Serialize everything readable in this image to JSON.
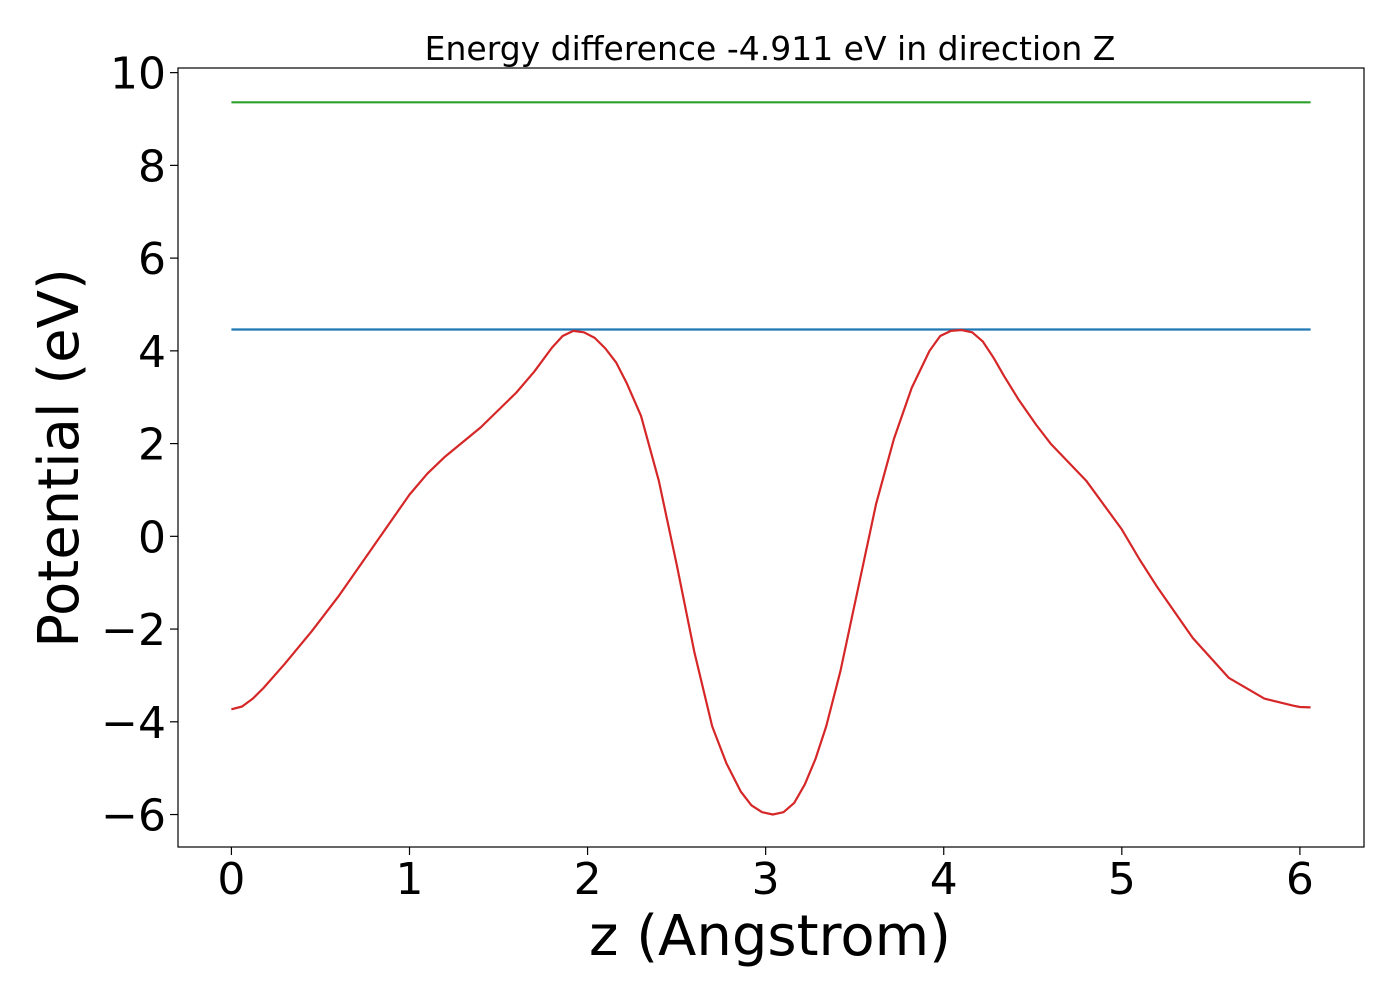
{
  "chart_data": {
    "type": "line",
    "title": "Energy difference -4.911 eV in direction Z",
    "xlabel": "z (Angstrom)",
    "ylabel": "Potential (eV)",
    "xlim": [
      -0.3,
      6.36
    ],
    "ylim": [
      -6.7,
      10.1
    ],
    "xticks": [
      0,
      1,
      2,
      3,
      4,
      5,
      6
    ],
    "xtick_labels": [
      "0",
      "1",
      "2",
      "3",
      "4",
      "5",
      "6"
    ],
    "yticks": [
      -6,
      -4,
      -2,
      0,
      2,
      4,
      6,
      8,
      10
    ],
    "ytick_labels": [
      "−6",
      "−4",
      "−2",
      "0",
      "2",
      "4",
      "6",
      "8",
      "10"
    ],
    "grid": false,
    "series": [
      {
        "color": "#2ca02c",
        "x": [
          0,
          6.06
        ],
        "y": [
          9.36,
          9.36
        ]
      },
      {
        "color": "#1f77b4",
        "x": [
          0,
          6.06
        ],
        "y": [
          4.46,
          4.46
        ]
      },
      {
        "color": "#d62728",
        "x": [
          0.0,
          0.06,
          0.12,
          0.18,
          0.3,
          0.45,
          0.6,
          0.8,
          1.0,
          1.1,
          1.2,
          1.4,
          1.6,
          1.7,
          1.8,
          1.86,
          1.92,
          1.98,
          2.04,
          2.1,
          2.16,
          2.22,
          2.3,
          2.4,
          2.5,
          2.6,
          2.7,
          2.78,
          2.86,
          2.92,
          2.98,
          3.04,
          3.1,
          3.16,
          3.22,
          3.28,
          3.34,
          3.42,
          3.52,
          3.62,
          3.72,
          3.82,
          3.92,
          3.98,
          4.04,
          4.1,
          4.16,
          4.22,
          4.28,
          4.34,
          4.42,
          4.52,
          4.6,
          4.8,
          5.0,
          5.1,
          5.2,
          5.4,
          5.6,
          5.8,
          5.96,
          6.0,
          6.06
        ],
        "y": [
          -3.73,
          -3.67,
          -3.5,
          -3.27,
          -2.75,
          -2.05,
          -1.3,
          -0.2,
          0.9,
          1.35,
          1.72,
          2.35,
          3.1,
          3.55,
          4.07,
          4.32,
          4.43,
          4.4,
          4.28,
          4.05,
          3.75,
          3.3,
          2.6,
          1.2,
          -0.6,
          -2.5,
          -4.1,
          -4.9,
          -5.5,
          -5.8,
          -5.95,
          -6.0,
          -5.95,
          -5.75,
          -5.35,
          -4.8,
          -4.1,
          -2.9,
          -1.1,
          0.7,
          2.1,
          3.2,
          4.0,
          4.32,
          4.43,
          4.45,
          4.4,
          4.2,
          3.85,
          3.45,
          2.95,
          2.4,
          2.0,
          1.2,
          0.15,
          -0.5,
          -1.1,
          -2.2,
          -3.05,
          -3.5,
          -3.65,
          -3.68,
          -3.69
        ]
      }
    ]
  }
}
